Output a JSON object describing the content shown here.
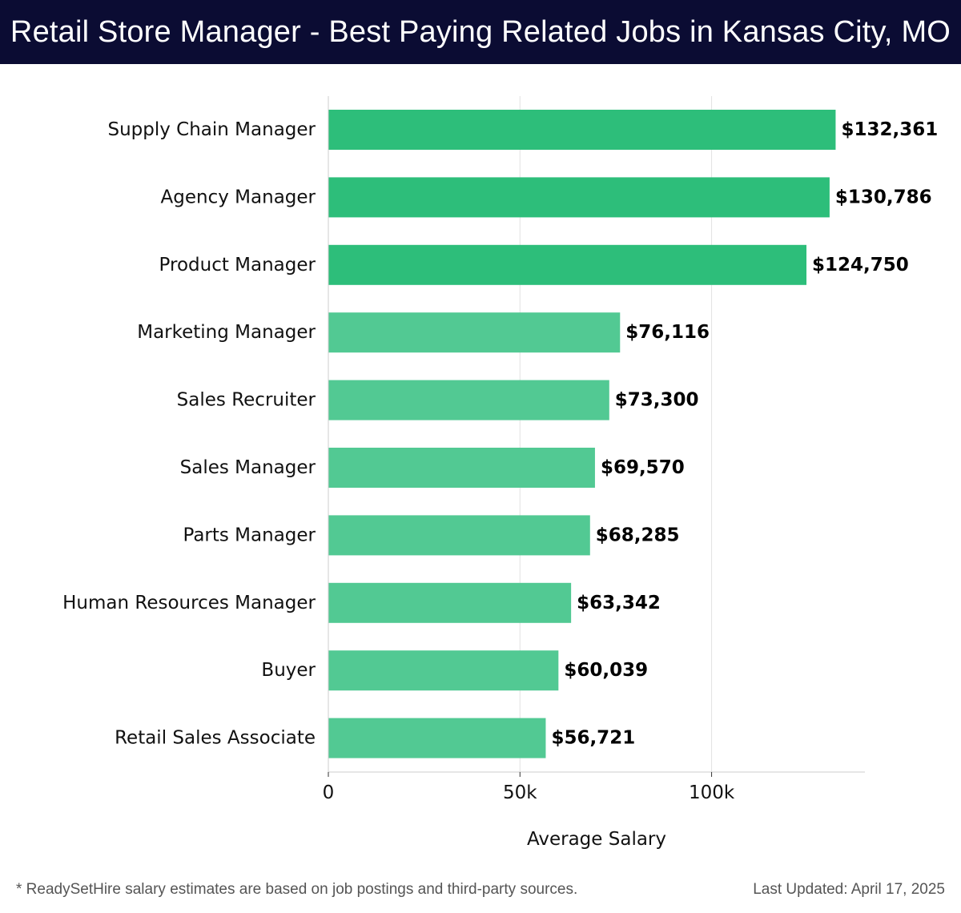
{
  "header": {
    "title": "Retail Store Manager - Best Paying Related Jobs in Kansas City, MO"
  },
  "chart_data": {
    "type": "bar",
    "orientation": "horizontal",
    "categories": [
      "Supply Chain Manager",
      "Agency Manager",
      "Product Manager",
      "Marketing Manager",
      "Sales Recruiter",
      "Sales Manager",
      "Parts Manager",
      "Human Resources Manager",
      "Buyer",
      "Retail Sales Associate"
    ],
    "values": [
      132361,
      130786,
      124750,
      76116,
      73300,
      69570,
      68285,
      63342,
      60039,
      56721
    ],
    "value_labels": [
      "$132,361",
      "$130,786",
      "$124,750",
      "$76,116",
      "$73,300",
      "$69,570",
      "$68,285",
      "$63,342",
      "$60,039",
      "$56,721"
    ],
    "xlabel": "Average Salary",
    "xlim": [
      0,
      140000
    ],
    "xticks": [
      0,
      50000,
      100000
    ],
    "xtick_labels": [
      "0",
      "50k",
      "100k"
    ],
    "grid": true,
    "colors": {
      "top_bars": "#2dbe7a",
      "other_bars": "#52c993",
      "grid": "#e2e2e2",
      "axis": "#cccccc"
    },
    "highlight_count": 3
  },
  "footer": {
    "note": "* ReadySetHire salary estimates are based on job postings and third-party sources.",
    "updated": "Last Updated: April 17, 2025"
  }
}
